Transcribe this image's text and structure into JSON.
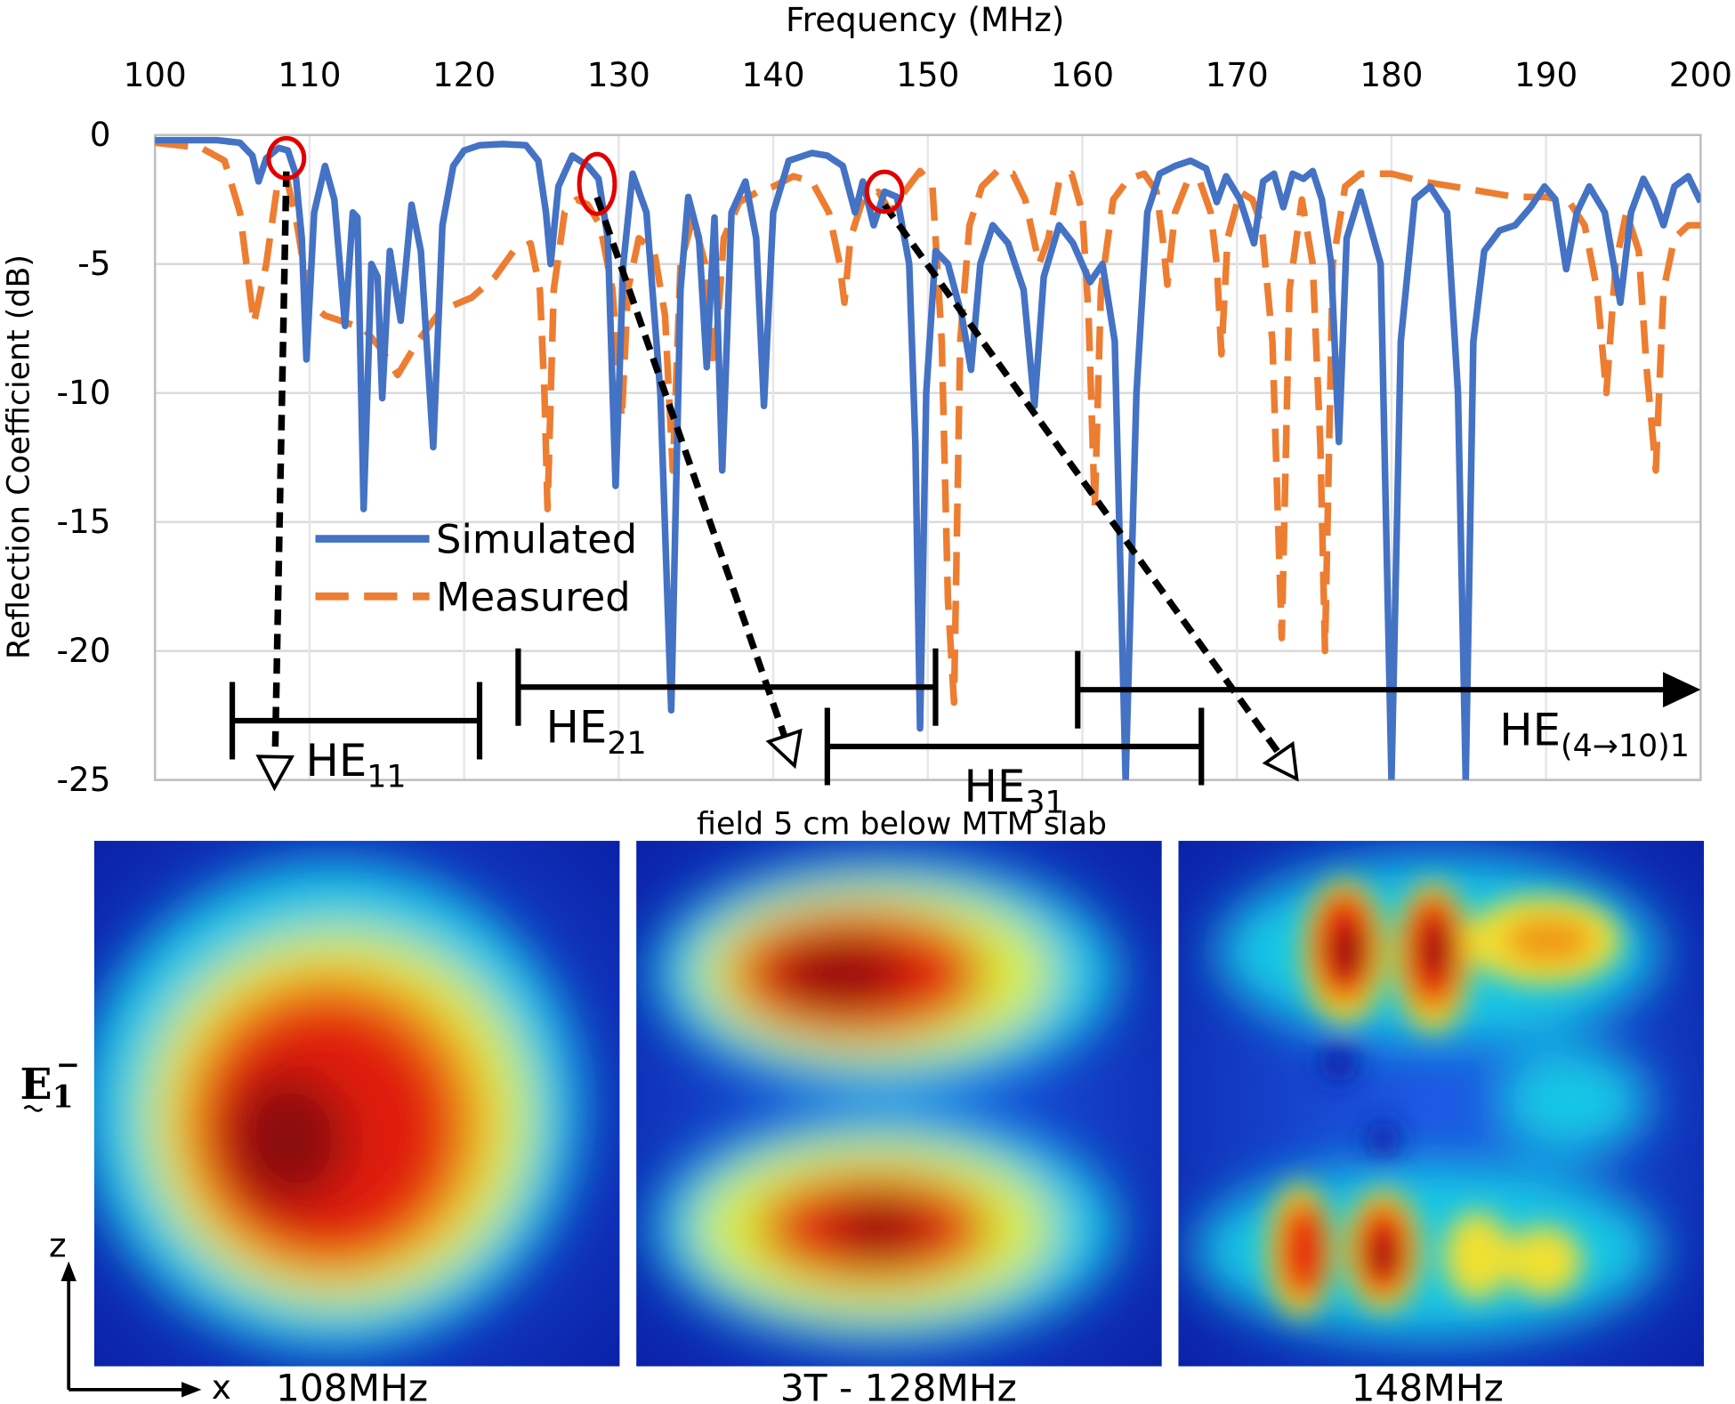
{
  "chart_data": {
    "type": "line",
    "xlabel": "Frequency (MHz)",
    "ylabel": "Reflection Coefficient (dB)",
    "xlim": [
      100,
      200
    ],
    "xticks": [
      100,
      110,
      120,
      130,
      140,
      150,
      160,
      170,
      180,
      190,
      200
    ],
    "ylim": [
      -25,
      0
    ],
    "yticks": [
      0,
      -5,
      -10,
      -15,
      -20,
      -25
    ],
    "grid": true,
    "series": [
      {
        "name": "Simulated",
        "color": "#4472c4",
        "dash": false,
        "x": [
          100,
          104,
          105.5,
          106.3,
          106.7,
          107.2,
          108,
          108.6,
          109.1,
          109.5,
          109.8,
          110.3,
          111,
          111.6,
          112.3,
          112.8,
          113.1,
          113.5,
          114,
          114.4,
          114.7,
          115.2,
          115.9,
          116.6,
          117.2,
          118,
          118.6,
          119.3,
          120,
          121,
          122.5,
          124,
          124.8,
          125.3,
          125.6,
          126.1,
          127,
          128,
          128.7,
          129.3,
          129.8,
          130.3,
          130.9,
          131.8,
          132.7,
          133.4,
          134,
          134.5,
          135.2,
          135.7,
          136.2,
          136.7,
          137.3,
          138.2,
          138.9,
          139.4,
          140,
          141,
          142.5,
          143.5,
          144.5,
          145.3,
          145.8,
          146.5,
          147.2,
          148,
          148.8,
          149.2,
          149.5,
          149.9,
          150.5,
          151.3,
          152.2,
          152.8,
          153.4,
          154.2,
          155.2,
          156.2,
          156.9,
          157.5,
          158.5,
          159.4,
          160.5,
          161.3,
          162.1,
          162.8,
          163.5,
          164.2,
          165,
          166,
          167,
          168,
          168.7,
          169.3,
          170.2,
          171.1,
          171.7,
          172.4,
          173,
          173.6,
          174.3,
          174.9,
          175.5,
          176.1,
          176.6,
          177.1,
          178,
          179.3,
          180,
          180.6,
          181.5,
          182.5,
          183.6,
          184.3,
          184.8,
          185.3,
          186,
          187,
          188,
          189,
          189.9,
          190.6,
          191.3,
          192,
          192.8,
          193.8,
          194.8,
          195.5,
          196.3,
          197,
          197.6,
          198.3,
          199.2,
          200
        ],
        "values": [
          -0.2,
          -0.2,
          -0.3,
          -0.8,
          -1.8,
          -0.9,
          -0.5,
          -0.6,
          -1.5,
          -4,
          -8.7,
          -3,
          -1.2,
          -2.5,
          -7.4,
          -3,
          -3.2,
          -14.5,
          -5,
          -5.5,
          -10.2,
          -4.5,
          -7.2,
          -2.7,
          -4.5,
          -12.1,
          -3.5,
          -1.2,
          -0.6,
          -0.4,
          -0.35,
          -0.4,
          -1,
          -3,
          -5,
          -2,
          -0.8,
          -1.2,
          -1.7,
          -4,
          -13.6,
          -5,
          -1.5,
          -3,
          -10,
          -22.3,
          -6,
          -2.4,
          -4,
          -9,
          -3.2,
          -13,
          -3,
          -1.8,
          -4,
          -10.5,
          -3,
          -1,
          -0.7,
          -0.8,
          -1.2,
          -3,
          -1.8,
          -3.5,
          -2.2,
          -2.4,
          -5,
          -12,
          -23,
          -10,
          -4.5,
          -5,
          -7,
          -9.1,
          -5,
          -3.5,
          -4.2,
          -6,
          -10.5,
          -5.5,
          -3.5,
          -4.2,
          -5.7,
          -5,
          -8,
          -25,
          -10,
          -3,
          -1.5,
          -1.2,
          -1,
          -1.3,
          -2.6,
          -1.6,
          -2.5,
          -4.2,
          -1.8,
          -1.5,
          -2.8,
          -1.5,
          -1.7,
          -1.4,
          -2.5,
          -5,
          -11.9,
          -4,
          -2.2,
          -5,
          -25,
          -8,
          -2.5,
          -2,
          -3,
          -10,
          -25,
          -8,
          -4.5,
          -3.7,
          -3.5,
          -2.8,
          -2,
          -2.5,
          -5.2,
          -3,
          -2,
          -3,
          -6.5,
          -3,
          -1.7,
          -2.5,
          -3.5,
          -2,
          -1.6,
          -2.6
        ]
      },
      {
        "name": "Measured",
        "color": "#ed7d31",
        "dash": true,
        "x": [
          100,
          103,
          104.5,
          105.5,
          106.4,
          107.2,
          107.9,
          108.5,
          109.2,
          110,
          111,
          112.5,
          113.5,
          114.5,
          115.7,
          117,
          118.5,
          120.5,
          122,
          123.2,
          124.3,
          124.9,
          125.2,
          125.4,
          125.8,
          126.5,
          127.3,
          128,
          128.8,
          129.6,
          130.2,
          130.6,
          131.3,
          132.3,
          133,
          133.5,
          134,
          134.8,
          135.6,
          136.2,
          136.8,
          137.8,
          139,
          140,
          141.3,
          142.5,
          143.6,
          144.3,
          144.6,
          145,
          145.8,
          146.8,
          147.6,
          148.5,
          149.5,
          150.3,
          150.9,
          151.3,
          151.7,
          152.1,
          152.7,
          153.5,
          154.5,
          155.5,
          156.3,
          157.2,
          157.8,
          158.5,
          159.3,
          160,
          160.4,
          160.8,
          161.2,
          162,
          163,
          164,
          164.8,
          165.2,
          165.5,
          166,
          166.8,
          167.6,
          168.3,
          168.7,
          169,
          169.4,
          170.2,
          171,
          171.6,
          172.3,
          172.9,
          173.4,
          174.2,
          174.9,
          175.4,
          175.7,
          176.2,
          177,
          178,
          180,
          182,
          184,
          186,
          188,
          190,
          191.5,
          192.5,
          193.3,
          193.9,
          194.5,
          195.2,
          196,
          196.5,
          197.1,
          197.6,
          198.3,
          199.2,
          200
        ],
        "values": [
          -0.3,
          -0.5,
          -1,
          -3,
          -7.3,
          -5,
          -2,
          -1.6,
          -3.5,
          -6.5,
          -7,
          -7.3,
          -7.5,
          -8.2,
          -9.3,
          -8,
          -6.8,
          -6.3,
          -5.5,
          -4.5,
          -4.2,
          -6,
          -10,
          -14.5,
          -6,
          -3,
          -2.5,
          -2.7,
          -3.5,
          -6,
          -11,
          -6,
          -4,
          -4.5,
          -7,
          -13,
          -5,
          -3.2,
          -5,
          -9,
          -4,
          -2.6,
          -2.2,
          -2,
          -1.6,
          -1.8,
          -3,
          -5,
          -6.5,
          -4,
          -2.5,
          -2.2,
          -3,
          -2.2,
          -1.4,
          -2,
          -8,
          -18,
          -22,
          -8,
          -3.5,
          -2,
          -1.4,
          -1.5,
          -2.5,
          -5,
          -4,
          -1.8,
          -1.5,
          -3,
          -7,
          -14.5,
          -6,
          -2.5,
          -1.7,
          -1.5,
          -2.2,
          -4,
          -5.8,
          -3,
          -1.8,
          -1.8,
          -3,
          -5,
          -8.5,
          -4,
          -2.2,
          -2.5,
          -3.5,
          -8,
          -19.5,
          -6,
          -2.5,
          -5,
          -12,
          -20,
          -5,
          -2,
          -1.5,
          -1.5,
          -1.8,
          -2,
          -2.2,
          -2.4,
          -2.4,
          -2.6,
          -3.5,
          -6,
          -10,
          -5,
          -3,
          -4.5,
          -9,
          -13,
          -6,
          -4,
          -3.5,
          -3.5
        ]
      }
    ],
    "markers": {
      "color": "#e00000",
      "points": [
        {
          "x": 108.5,
          "y": -0.9
        },
        {
          "x": 128.6,
          "y": -1.9
        },
        {
          "x": 147.2,
          "y": -2.2
        }
      ]
    },
    "annotations": [
      {
        "label": "HE",
        "subscript": "11",
        "x": [
          105,
          121
        ],
        "y": -22.7,
        "arrow": false
      },
      {
        "label": "HE",
        "subscript": "21",
        "x": [
          123.5,
          150.5
        ],
        "y": -21.4,
        "arrow": false
      },
      {
        "label": "HE",
        "subscript": "31",
        "x": [
          143.5,
          167.7
        ],
        "y": -23.7,
        "arrow": false
      },
      {
        "label": "HE",
        "subscript": "(4→10)1",
        "x": [
          159.7,
          200
        ],
        "y": -21.5,
        "arrow": true
      }
    ],
    "panel_title": "field 5 cm below MTM slab",
    "panels": [
      {
        "caption": "108MHz"
      },
      {
        "caption": "3T - 128MHz"
      },
      {
        "caption": "148MHz"
      }
    ],
    "field_symbol": {
      "base": "E",
      "subscript": "1",
      "superscript": "−"
    },
    "axis_names": {
      "z": "z",
      "x": "x"
    }
  }
}
